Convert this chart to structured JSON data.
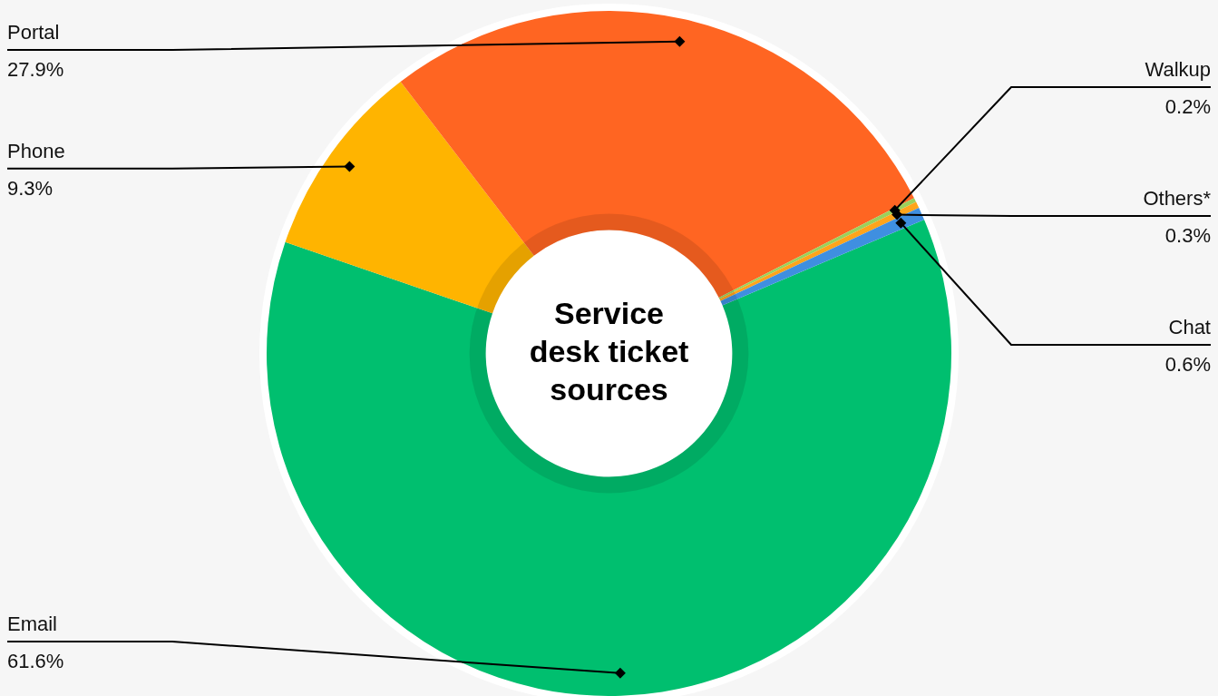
{
  "chart_data": {
    "type": "donut",
    "title": "Service desk ticket sources",
    "categories": [
      "Email",
      "Phone",
      "Portal",
      "Walkup",
      "Others*",
      "Chat"
    ],
    "values": [
      61.6,
      9.3,
      27.9,
      0.2,
      0.3,
      0.6
    ],
    "value_labels": [
      "61.6%",
      "9.3%",
      "27.9%",
      "0.2%",
      "0.3%",
      "0.6%"
    ],
    "colors": [
      "#00bf6f",
      "#ffb400",
      "#ff6522",
      "#9bd15c",
      "#ffa41b",
      "#3f8fe0"
    ]
  }
}
